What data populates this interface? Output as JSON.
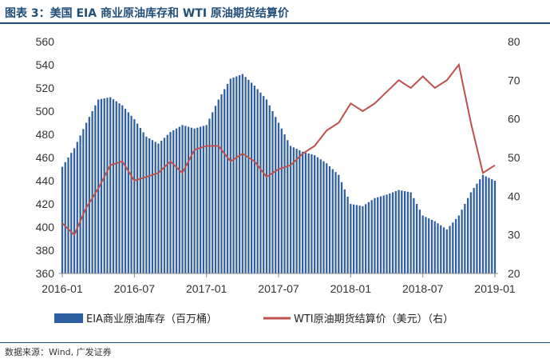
{
  "title": "图表 3：美国 EIA 商业原油库存和 WTI 原油期货结算价",
  "source": "数据来源：Wind, 广发证券",
  "colors": {
    "bars": "#2e5fa3",
    "line": "#c0504d",
    "title": "#1f4e79"
  },
  "chart_data": {
    "type": "bar+line",
    "xlabel": "",
    "ylabel_left": "",
    "ylabel_right": "",
    "x_ticks": [
      "2016-01",
      "2016-07",
      "2017-01",
      "2017-07",
      "2018-01",
      "2018-07",
      "2019-01"
    ],
    "y_left": {
      "min": 360,
      "max": 560,
      "ticks": [
        360,
        380,
        400,
        420,
        440,
        460,
        480,
        500,
        520,
        540,
        560
      ]
    },
    "y_right": {
      "min": 20,
      "max": 80,
      "ticks": [
        20,
        30,
        40,
        50,
        60,
        70,
        80
      ]
    },
    "x_range": [
      "2016-01",
      "2019-01"
    ],
    "legend_position": "bottom",
    "series": [
      {
        "name": "EIA商业原油库存（百万桶）",
        "type": "bar",
        "axis": "left",
        "x": [
          "2016-01",
          "2016-02",
          "2016-03",
          "2016-04",
          "2016-05",
          "2016-06",
          "2016-07",
          "2016-08",
          "2016-09",
          "2016-10",
          "2016-11",
          "2016-12",
          "2017-01",
          "2017-02",
          "2017-03",
          "2017-04",
          "2017-05",
          "2017-06",
          "2017-07",
          "2017-08",
          "2017-09",
          "2017-10",
          "2017-11",
          "2017-12",
          "2018-01",
          "2018-02",
          "2018-03",
          "2018-04",
          "2018-05",
          "2018-06",
          "2018-07",
          "2018-08",
          "2018-09",
          "2018-10",
          "2018-11",
          "2018-12",
          "2019-01"
        ],
        "values": [
          452,
          468,
          490,
          510,
          512,
          505,
          493,
          478,
          472,
          482,
          488,
          485,
          488,
          510,
          528,
          532,
          522,
          510,
          490,
          470,
          465,
          462,
          455,
          445,
          420,
          418,
          425,
          428,
          432,
          430,
          410,
          405,
          398,
          410,
          430,
          445,
          440
        ]
      },
      {
        "name": "WTI原油期货结算价（美元）（右）",
        "type": "line",
        "axis": "right",
        "x": [
          "2016-01",
          "2016-02",
          "2016-03",
          "2016-04",
          "2016-05",
          "2016-06",
          "2016-07",
          "2016-08",
          "2016-09",
          "2016-10",
          "2016-11",
          "2016-12",
          "2017-01",
          "2017-02",
          "2017-03",
          "2017-04",
          "2017-05",
          "2017-06",
          "2017-07",
          "2017-08",
          "2017-09",
          "2017-10",
          "2017-11",
          "2017-12",
          "2018-01",
          "2018-02",
          "2018-03",
          "2018-04",
          "2018-05",
          "2018-06",
          "2018-07",
          "2018-08",
          "2018-09",
          "2018-10",
          "2018-11",
          "2018-12",
          "2019-01"
        ],
        "values": [
          33,
          30,
          37,
          42,
          48,
          49,
          44,
          45,
          46,
          49,
          46,
          52,
          53,
          53,
          49,
          51,
          49,
          45,
          47,
          48,
          51,
          53,
          57,
          59,
          64,
          62,
          64,
          67,
          70,
          68,
          71,
          68,
          70,
          74,
          59,
          46,
          48
        ]
      }
    ]
  }
}
